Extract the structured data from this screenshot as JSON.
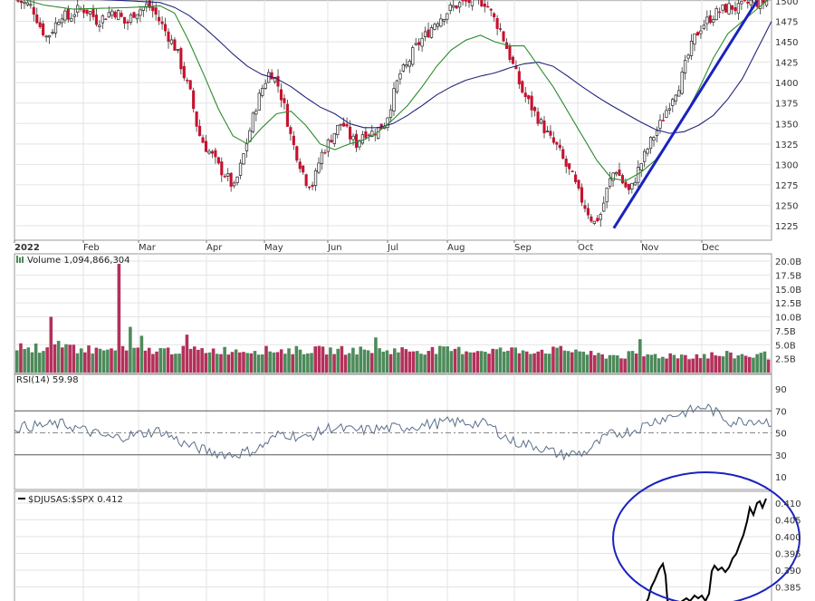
{
  "chart_data": [
    {
      "type": "candlestick",
      "panel": "price",
      "x_ticks": [
        "2022",
        "Feb",
        "Mar",
        "Apr",
        "May",
        "Jun",
        "Jul",
        "Aug",
        "Sep",
        "Oct",
        "Nov",
        "Dec"
      ],
      "y_ticks": [
        "1500",
        "1475",
        "1450",
        "1425",
        "1400",
        "1375",
        "1350",
        "1325",
        "1300",
        "1275",
        "1250",
        "1225"
      ],
      "ylim": [
        1212,
        1505
      ],
      "close_path": [
        [
          0,
          1500
        ],
        [
          3,
          1497
        ],
        [
          6,
          1492
        ],
        [
          9,
          1470
        ],
        [
          12,
          1455
        ],
        [
          15,
          1468
        ],
        [
          18,
          1485
        ],
        [
          21,
          1478
        ],
        [
          24,
          1488
        ],
        [
          27,
          1490
        ],
        [
          30,
          1486
        ],
        [
          33,
          1475
        ],
        [
          36,
          1481
        ],
        [
          39,
          1488
        ],
        [
          42,
          1484
        ],
        [
          45,
          1470
        ],
        [
          48,
          1485
        ],
        [
          51,
          1490
        ],
        [
          54,
          1495
        ],
        [
          57,
          1485
        ],
        [
          60,
          1470
        ],
        [
          63,
          1455
        ],
        [
          66,
          1440
        ],
        [
          69,
          1410
        ],
        [
          72,
          1385
        ],
        [
          75,
          1340
        ],
        [
          78,
          1322
        ],
        [
          81,
          1310
        ],
        [
          84,
          1295
        ],
        [
          87,
          1285
        ],
        [
          90,
          1270
        ],
        [
          93,
          1300
        ],
        [
          96,
          1335
        ],
        [
          99,
          1370
        ],
        [
          102,
          1395
        ],
        [
          105,
          1415
        ],
        [
          108,
          1400
        ],
        [
          111,
          1370
        ],
        [
          114,
          1330
        ],
        [
          117,
          1305
        ],
        [
          120,
          1280
        ],
        [
          123,
          1275
        ],
        [
          126,
          1310
        ],
        [
          129,
          1325
        ],
        [
          132,
          1340
        ],
        [
          135,
          1352
        ],
        [
          138,
          1335
        ],
        [
          141,
          1325
        ],
        [
          144,
          1340
        ],
        [
          147,
          1338
        ],
        [
          150,
          1343
        ],
        [
          153,
          1350
        ],
        [
          156,
          1380
        ],
        [
          159,
          1410
        ],
        [
          162,
          1420
        ],
        [
          165,
          1440
        ],
        [
          168,
          1452
        ],
        [
          171,
          1462
        ],
        [
          174,
          1475
        ],
        [
          177,
          1482
        ],
        [
          180,
          1490
        ],
        [
          183,
          1495
        ],
        [
          186,
          1498
        ],
        [
          189,
          1500
        ],
        [
          192,
          1500
        ],
        [
          195,
          1498
        ],
        [
          198,
          1480
        ],
        [
          201,
          1465
        ],
        [
          204,
          1440
        ],
        [
          207,
          1415
        ],
        [
          210,
          1390
        ],
        [
          213,
          1375
        ],
        [
          216,
          1360
        ],
        [
          219,
          1345
        ],
        [
          222,
          1330
        ],
        [
          225,
          1320
        ],
        [
          228,
          1300
        ],
        [
          231,
          1285
        ],
        [
          234,
          1262
        ],
        [
          237,
          1245
        ],
        [
          240,
          1228
        ],
        [
          243,
          1240
        ],
        [
          246,
          1275
        ],
        [
          249,
          1296
        ],
        [
          252,
          1278
        ],
        [
          255,
          1265
        ],
        [
          258,
          1290
        ],
        [
          261,
          1310
        ],
        [
          264,
          1330
        ],
        [
          267,
          1345
        ],
        [
          270,
          1365
        ],
        [
          273,
          1385
        ],
        [
          276,
          1400
        ],
        [
          279,
          1430
        ],
        [
          282,
          1455
        ],
        [
          285,
          1470
        ],
        [
          288,
          1478
        ],
        [
          291,
          1485
        ],
        [
          294,
          1490
        ],
        [
          297,
          1493
        ],
        [
          300,
          1490
        ],
        [
          303,
          1495
        ],
        [
          306,
          1500
        ],
        [
          309,
          1497
        ],
        [
          312,
          1500
        ]
      ],
      "sma_fast": [
        [
          0,
          1505
        ],
        [
          12,
          1495
        ],
        [
          24,
          1490
        ],
        [
          36,
          1491
        ],
        [
          48,
          1492
        ],
        [
          60,
          1494
        ],
        [
          66,
          1485
        ],
        [
          72,
          1450
        ],
        [
          78,
          1410
        ],
        [
          84,
          1368
        ],
        [
          90,
          1335
        ],
        [
          96,
          1325
        ],
        [
          102,
          1345
        ],
        [
          108,
          1362
        ],
        [
          114,
          1365
        ],
        [
          120,
          1348
        ],
        [
          126,
          1325
        ],
        [
          132,
          1318
        ],
        [
          138,
          1325
        ],
        [
          144,
          1330
        ],
        [
          150,
          1340
        ],
        [
          156,
          1355
        ],
        [
          162,
          1372
        ],
        [
          168,
          1395
        ],
        [
          174,
          1420
        ],
        [
          180,
          1440
        ],
        [
          186,
          1452
        ],
        [
          192,
          1458
        ],
        [
          198,
          1450
        ],
        [
          204,
          1445
        ],
        [
          210,
          1445
        ],
        [
          216,
          1420
        ],
        [
          222,
          1395
        ],
        [
          228,
          1365
        ],
        [
          234,
          1335
        ],
        [
          240,
          1305
        ],
        [
          246,
          1283
        ],
        [
          252,
          1280
        ],
        [
          258,
          1290
        ],
        [
          264,
          1305
        ],
        [
          270,
          1330
        ],
        [
          276,
          1358
        ],
        [
          282,
          1392
        ],
        [
          288,
          1430
        ],
        [
          294,
          1460
        ],
        [
          300,
          1475
        ],
        [
          306,
          1490
        ],
        [
          312,
          1505
        ]
      ],
      "sma_slow": [
        [
          0,
          1505
        ],
        [
          24,
          1503
        ],
        [
          48,
          1500
        ],
        [
          60,
          1498
        ],
        [
          66,
          1492
        ],
        [
          72,
          1482
        ],
        [
          78,
          1468
        ],
        [
          84,
          1452
        ],
        [
          90,
          1435
        ],
        [
          96,
          1420
        ],
        [
          102,
          1410
        ],
        [
          108,
          1405
        ],
        [
          114,
          1395
        ],
        [
          120,
          1382
        ],
        [
          126,
          1370
        ],
        [
          132,
          1362
        ],
        [
          138,
          1350
        ],
        [
          144,
          1345
        ],
        [
          150,
          1345
        ],
        [
          156,
          1350
        ],
        [
          162,
          1360
        ],
        [
          168,
          1372
        ],
        [
          174,
          1385
        ],
        [
          180,
          1395
        ],
        [
          186,
          1403
        ],
        [
          192,
          1408
        ],
        [
          198,
          1412
        ],
        [
          204,
          1418
        ],
        [
          210,
          1423
        ],
        [
          216,
          1425
        ],
        [
          222,
          1420
        ],
        [
          228,
          1408
        ],
        [
          234,
          1395
        ],
        [
          240,
          1383
        ],
        [
          246,
          1372
        ],
        [
          252,
          1362
        ],
        [
          258,
          1352
        ],
        [
          264,
          1343
        ],
        [
          270,
          1338
        ],
        [
          276,
          1340
        ],
        [
          282,
          1348
        ],
        [
          288,
          1360
        ],
        [
          294,
          1380
        ],
        [
          300,
          1405
        ],
        [
          306,
          1440
        ],
        [
          312,
          1475
        ]
      ],
      "trendline": [
        [
          247,
          1222
        ],
        [
          306,
          1500
        ]
      ]
    },
    {
      "type": "bar",
      "panel": "volume",
      "label": "Volume 1,094,866,304",
      "y_ticks": [
        "20.0B",
        "17.5B",
        "15.0B",
        "12.5B",
        "10.0B",
        "7.5B",
        "5.0B",
        "2.5B"
      ],
      "ylim": [
        0,
        21
      ],
      "up_color": "#4d8a5a",
      "down_color": "#b3305a"
    },
    {
      "type": "line",
      "panel": "rsi",
      "label": "RSI(14) 59.98",
      "y_ticks": [
        "90",
        "70",
        "50",
        "30",
        "10"
      ],
      "ylim": [
        0,
        100
      ]
    },
    {
      "type": "line",
      "panel": "ratio",
      "label": "$DJUSAS:$SPX 0.412",
      "y_ticks": [
        "0.410",
        "0.405",
        "0.400",
        "0.395",
        "0.390",
        "0.385"
      ],
      "ylim": [
        0.383,
        0.413
      ]
    }
  ],
  "colors": {
    "up": "#2f7d3b",
    "down": "#c8102e",
    "sma_fast": "#2e8b2e",
    "sma_slow": "#22257a",
    "trendline": "#1a22c0",
    "rsi": "#5a6f8c",
    "ratio": "#000000",
    "circle": "#1a22c0",
    "grid": "#e3e3e3"
  }
}
